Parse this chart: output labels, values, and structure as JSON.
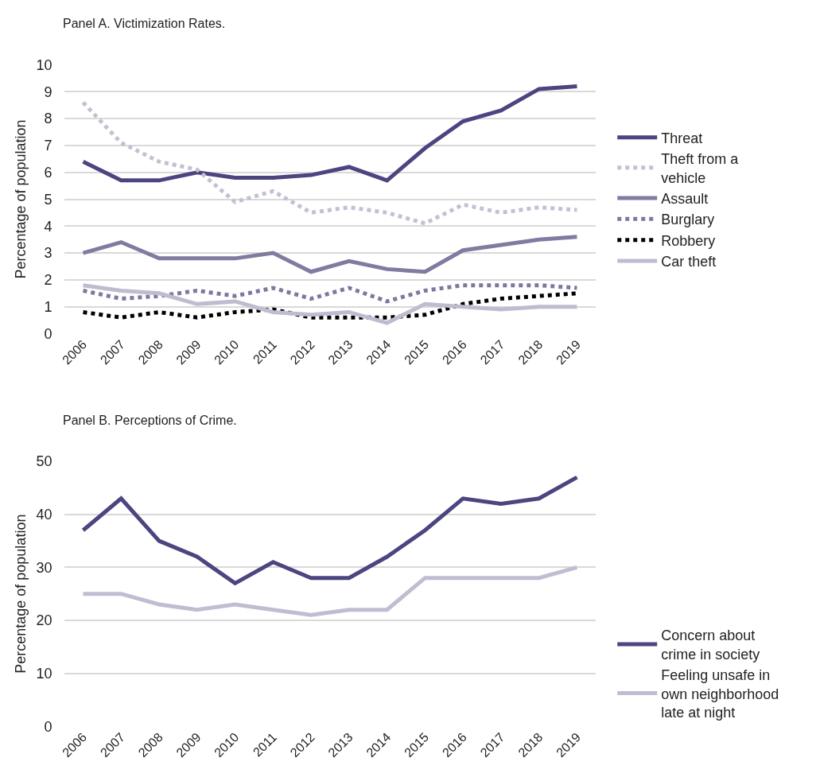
{
  "chart_data": [
    {
      "type": "line",
      "title": "Panel A. Victimization Rates.",
      "ylabel": "Percentage of population",
      "categories": [
        "2006",
        "2007",
        "2008",
        "2009",
        "2010",
        "2011",
        "2012",
        "2013",
        "2014",
        "2015",
        "2016",
        "2017",
        "2018",
        "2019"
      ],
      "ylim": [
        0,
        10
      ],
      "yticks": [
        0,
        1,
        2,
        3,
        4,
        5,
        6,
        7,
        8,
        9,
        10
      ],
      "grid": "y",
      "legend": "right",
      "series": [
        {
          "name": "Threat",
          "color": "#4b4580",
          "line_style": "solid",
          "values": [
            6.4,
            5.7,
            5.7,
            6.0,
            5.8,
            5.8,
            5.9,
            6.2,
            5.7,
            6.9,
            7.9,
            8.3,
            9.1,
            9.2
          ]
        },
        {
          "name": "Theft from a vehicle",
          "color": "#c4c0d4",
          "line_style": "dotted",
          "values": [
            8.6,
            7.1,
            6.4,
            6.1,
            4.9,
            5.3,
            4.5,
            4.7,
            4.5,
            4.1,
            4.8,
            4.5,
            4.7,
            4.6
          ]
        },
        {
          "name": "Assault",
          "color": "#807ba0",
          "line_style": "solid",
          "values": [
            3.0,
            3.4,
            2.8,
            2.8,
            2.8,
            3.0,
            2.3,
            2.7,
            2.4,
            2.3,
            3.1,
            3.3,
            3.5,
            3.6
          ]
        },
        {
          "name": "Burglary",
          "color": "#7d78a0",
          "line_style": "dotted",
          "values": [
            1.6,
            1.3,
            1.4,
            1.6,
            1.4,
            1.7,
            1.3,
            1.7,
            1.2,
            1.6,
            1.8,
            1.8,
            1.8,
            1.7
          ]
        },
        {
          "name": "Robbery",
          "color": "#000000",
          "line_style": "dotted",
          "values": [
            0.8,
            0.6,
            0.8,
            0.6,
            0.8,
            0.9,
            0.6,
            0.6,
            0.6,
            0.7,
            1.1,
            1.3,
            1.4,
            1.5
          ]
        },
        {
          "name": "Car theft",
          "color": "#bfbcd0",
          "line_style": "solid",
          "values": [
            1.8,
            1.6,
            1.5,
            1.1,
            1.2,
            0.8,
            0.7,
            0.8,
            0.4,
            1.1,
            1.0,
            0.9,
            1.0,
            1.0
          ]
        }
      ]
    },
    {
      "type": "line",
      "title": "Panel B. Perceptions of Crime.",
      "ylabel": "Percentage of population",
      "categories": [
        "2006",
        "2007",
        "2008",
        "2009",
        "2010",
        "2011",
        "2012",
        "2013",
        "2014",
        "2015",
        "2016",
        "2017",
        "2018",
        "2019"
      ],
      "ylim": [
        0,
        50
      ],
      "yticks": [
        0,
        10,
        20,
        30,
        40,
        50
      ],
      "grid": "y",
      "legend": "bottom right",
      "series": [
        {
          "name": "Concern about crime in society",
          "color": "#4b4580",
          "line_style": "solid",
          "values": [
            37,
            43,
            35,
            32,
            27,
            31,
            28,
            28,
            32,
            37,
            43,
            42,
            43,
            47
          ]
        },
        {
          "name": "Feeling unsafe in own neighborhood late at night",
          "color": "#c0bdd2",
          "line_style": "solid",
          "values": [
            25,
            25,
            23,
            22,
            23,
            22,
            21,
            22,
            22,
            28,
            28,
            28,
            28,
            30
          ]
        }
      ]
    }
  ]
}
